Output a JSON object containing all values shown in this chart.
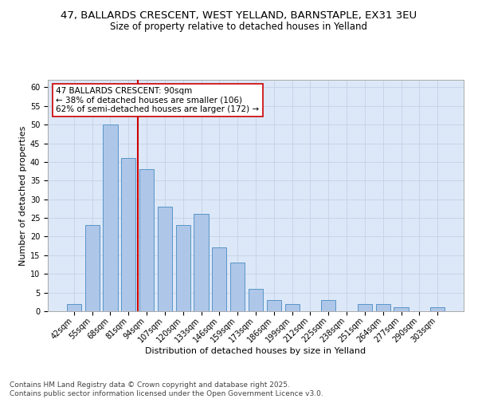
{
  "title_line1": "47, BALLARDS CRESCENT, WEST YELLAND, BARNSTAPLE, EX31 3EU",
  "title_line2": "Size of property relative to detached houses in Yelland",
  "xlabel": "Distribution of detached houses by size in Yelland",
  "ylabel": "Number of detached properties",
  "categories": [
    "42sqm",
    "55sqm",
    "68sqm",
    "81sqm",
    "94sqm",
    "107sqm",
    "120sqm",
    "133sqm",
    "146sqm",
    "159sqm",
    "173sqm",
    "186sqm",
    "199sqm",
    "212sqm",
    "225sqm",
    "238sqm",
    "251sqm",
    "264sqm",
    "277sqm",
    "290sqm",
    "303sqm"
  ],
  "values": [
    2,
    23,
    50,
    41,
    38,
    28,
    23,
    26,
    17,
    13,
    6,
    3,
    2,
    0,
    3,
    0,
    2,
    2,
    1,
    0,
    1
  ],
  "bar_color": "#aec6e8",
  "bar_edge_color": "#5a96c8",
  "bar_width": 0.8,
  "red_line_x": 3.5,
  "annotation_text": "47 BALLARDS CRESCENT: 90sqm\n← 38% of detached houses are smaller (106)\n62% of semi-detached houses are larger (172) →",
  "annotation_box_color": "#ffffff",
  "annotation_box_edge": "#cc0000",
  "ylim": [
    0,
    62
  ],
  "yticks": [
    0,
    5,
    10,
    15,
    20,
    25,
    30,
    35,
    40,
    45,
    50,
    55,
    60
  ],
  "grid_color": "#c8d4e8",
  "bg_color": "#dce8f8",
  "footer": "Contains HM Land Registry data © Crown copyright and database right 2025.\nContains public sector information licensed under the Open Government Licence v3.0.",
  "title_fontsize": 9.5,
  "subtitle_fontsize": 8.5,
  "xlabel_fontsize": 8,
  "ylabel_fontsize": 8,
  "tick_fontsize": 7,
  "annotation_fontsize": 7.5,
  "footer_fontsize": 6.5
}
